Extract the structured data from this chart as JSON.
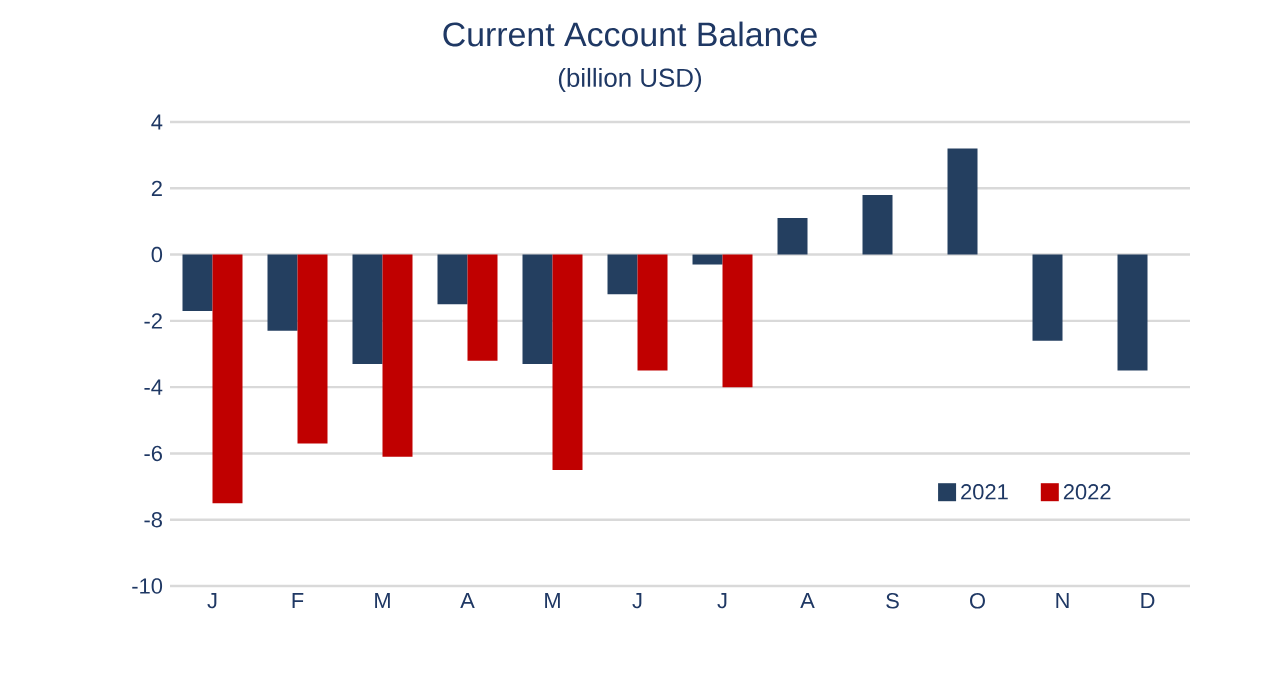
{
  "chart_data": {
    "type": "bar",
    "title": "Current Account Balance",
    "subtitle": "(billion USD)",
    "categories": [
      "J",
      "F",
      "M",
      "A",
      "M",
      "J",
      "J",
      "A",
      "S",
      "O",
      "N",
      "D"
    ],
    "series": [
      {
        "name": "2021",
        "color": "#243f60",
        "values": [
          -1.7,
          -2.3,
          -3.3,
          -1.5,
          -3.3,
          -1.2,
          -0.3,
          1.1,
          1.8,
          3.2,
          -2.6,
          -3.5
        ]
      },
      {
        "name": "2022",
        "color": "#c00000",
        "values": [
          -7.5,
          -5.7,
          -6.1,
          -3.2,
          -6.5,
          -3.5,
          -4.0,
          null,
          null,
          null,
          null,
          null
        ]
      }
    ],
    "ylim": [
      -10,
      4
    ],
    "yticks": [
      -10,
      -8,
      -6,
      -4,
      -2,
      0,
      2,
      4
    ],
    "grid": "y",
    "legend": "bottom right"
  }
}
